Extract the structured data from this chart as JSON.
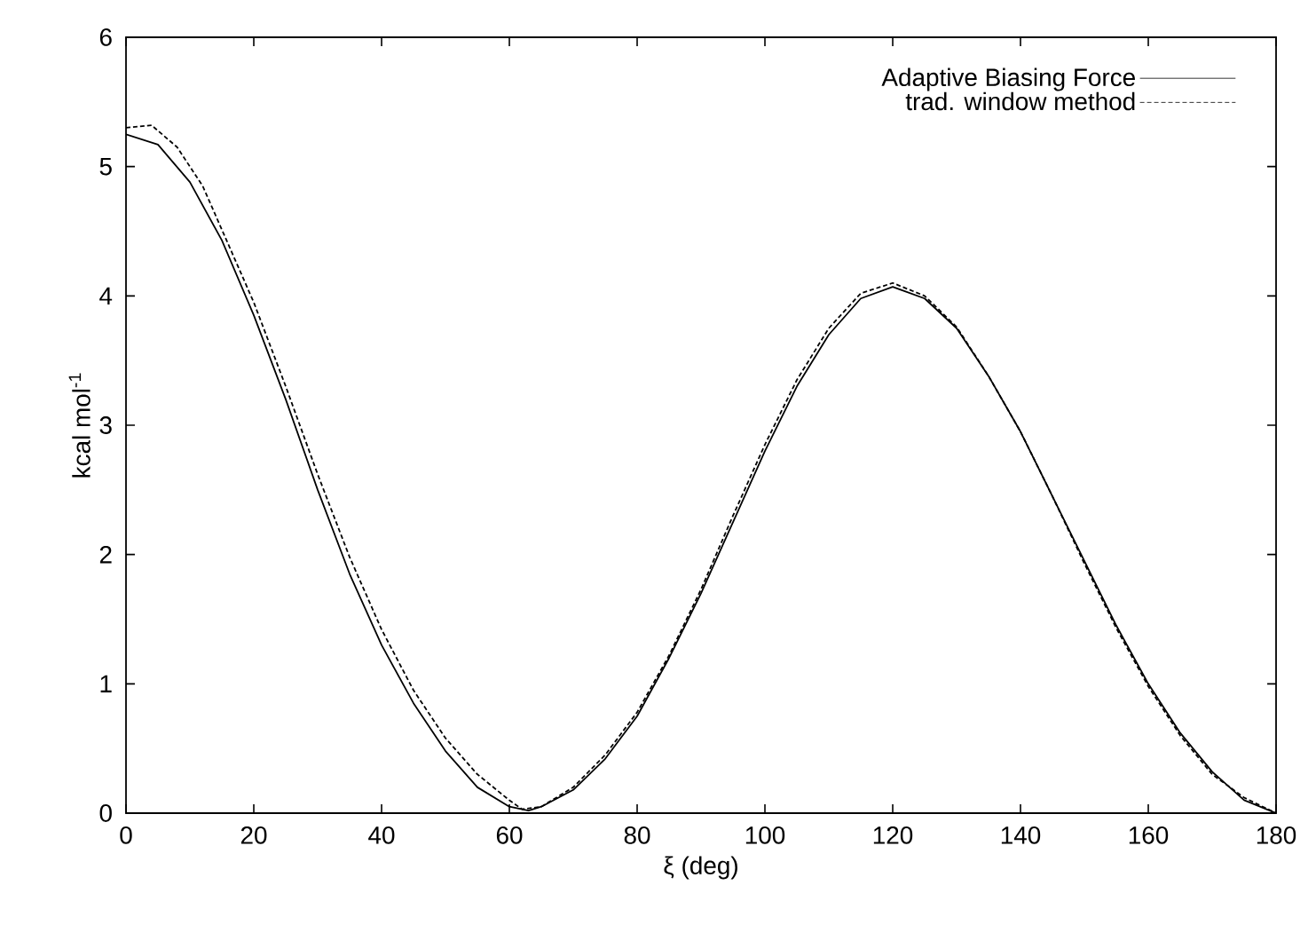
{
  "chart_data": {
    "type": "line",
    "xlabel": "ξ (deg)",
    "ylabel": "kcal mol$^{-1}$",
    "xlim": [
      0,
      180
    ],
    "ylim": [
      0,
      6
    ],
    "xticks": [
      0,
      20,
      40,
      60,
      80,
      100,
      120,
      140,
      160,
      180
    ],
    "yticks": [
      0,
      1,
      2,
      3,
      4,
      5,
      6
    ],
    "legend": "top right",
    "grid": false,
    "series": [
      {
        "name": "Adaptive Biasing Force",
        "color": "#000000",
        "line_style": "solid",
        "x": [
          0,
          5,
          10,
          15,
          20,
          25,
          30,
          35,
          40,
          45,
          50,
          55,
          60,
          63,
          65,
          70,
          75,
          80,
          85,
          90,
          95,
          100,
          105,
          110,
          115,
          120,
          125,
          130,
          135,
          140,
          145,
          150,
          155,
          160,
          165,
          170,
          175,
          180
        ],
        "values": [
          5.25,
          5.17,
          4.88,
          4.43,
          3.85,
          3.2,
          2.5,
          1.85,
          1.3,
          0.85,
          0.48,
          0.2,
          0.05,
          0.02,
          0.05,
          0.18,
          0.42,
          0.75,
          1.2,
          1.7,
          2.25,
          2.8,
          3.3,
          3.7,
          3.98,
          4.07,
          3.98,
          3.75,
          3.38,
          2.95,
          2.45,
          1.95,
          1.45,
          1.0,
          0.62,
          0.32,
          0.1,
          0.0
        ]
      },
      {
        "name": "trad. window method",
        "color": "#000000",
        "line_style": "dashed",
        "x": [
          0,
          4,
          8,
          12,
          16,
          20,
          25,
          30,
          35,
          40,
          45,
          50,
          55,
          60,
          62,
          65,
          70,
          75,
          80,
          85,
          90,
          95,
          100,
          105,
          110,
          115,
          120,
          125,
          130,
          135,
          140,
          145,
          150,
          155,
          160,
          165,
          170,
          175,
          180
        ],
        "values": [
          5.3,
          5.32,
          5.15,
          4.85,
          4.4,
          3.95,
          3.3,
          2.62,
          1.98,
          1.42,
          0.95,
          0.58,
          0.3,
          0.1,
          0.03,
          0.05,
          0.2,
          0.45,
          0.78,
          1.22,
          1.73,
          2.3,
          2.85,
          3.35,
          3.75,
          4.02,
          4.1,
          4.0,
          3.76,
          3.38,
          2.95,
          2.45,
          1.93,
          1.43,
          0.98,
          0.6,
          0.3,
          0.12,
          0.0
        ]
      }
    ]
  }
}
